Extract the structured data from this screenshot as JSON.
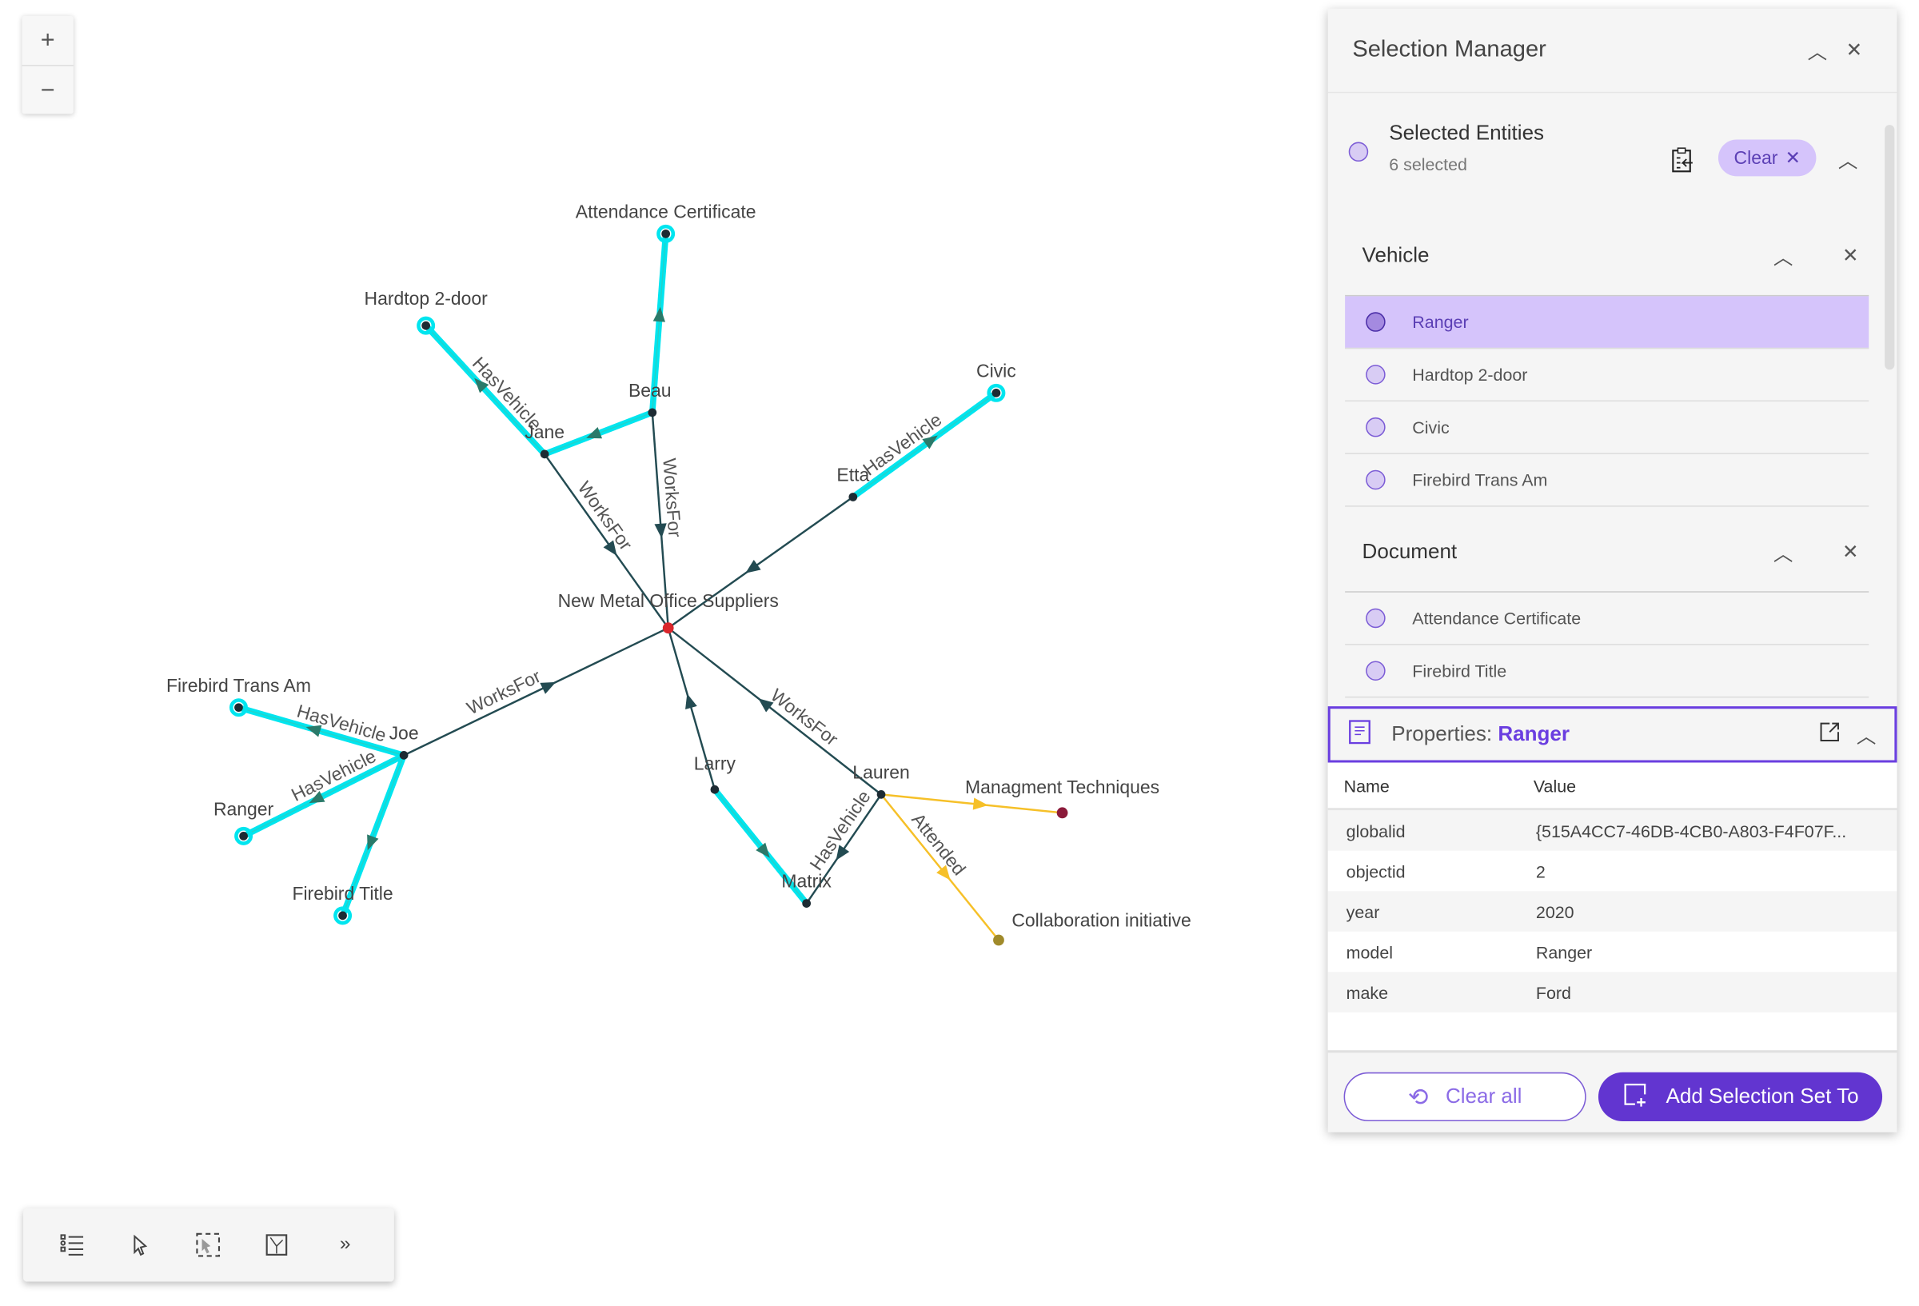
{
  "graph": {
    "nodes": [
      {
        "id": "nmos",
        "label": "New Metal Office Suppliers",
        "color": "#d9262b"
      },
      {
        "id": "cert",
        "label": "Attendance Certificate",
        "selected": true
      },
      {
        "id": "hardtop",
        "label": "Hardtop 2-door",
        "selected": true
      },
      {
        "id": "beau",
        "label": "Beau"
      },
      {
        "id": "jane",
        "label": "Jane"
      },
      {
        "id": "civic",
        "label": "Civic",
        "selected": true
      },
      {
        "id": "etta",
        "label": "Etta"
      },
      {
        "id": "fta",
        "label": "Firebird Trans Am",
        "selected": true
      },
      {
        "id": "joe",
        "label": "Joe"
      },
      {
        "id": "ranger",
        "label": "Ranger",
        "selected": true
      },
      {
        "id": "ftitle",
        "label": "Firebird Title",
        "selected": true
      },
      {
        "id": "larry",
        "label": "Larry"
      },
      {
        "id": "matrix",
        "label": "Matrix"
      },
      {
        "id": "lauren",
        "label": "Lauren"
      },
      {
        "id": "mgmt",
        "label": "Managment Techniques",
        "color": "#8b1a3a"
      },
      {
        "id": "collab",
        "label": "Collaboration initiative",
        "color": "#a08a2a"
      }
    ],
    "edges": [
      {
        "from": "jane",
        "to": "nmos",
        "label": "WorksFor",
        "kind": "normal"
      },
      {
        "from": "beau",
        "to": "nmos",
        "label": "WorksFor",
        "kind": "normal"
      },
      {
        "from": "etta",
        "to": "nmos",
        "label": "",
        "kind": "normal"
      },
      {
        "from": "joe",
        "to": "nmos",
        "label": "WorksFor",
        "kind": "normal"
      },
      {
        "from": "larry",
        "to": "nmos",
        "label": "",
        "kind": "normal"
      },
      {
        "from": "lauren",
        "to": "nmos",
        "label": "WorksFor",
        "kind": "normal"
      },
      {
        "from": "lauren",
        "to": "matrix",
        "label": "HasVehicle",
        "kind": "normal"
      },
      {
        "from": "jane",
        "to": "hardtop",
        "label": "HasVehicle",
        "kind": "selected"
      },
      {
        "from": "beau",
        "to": "jane",
        "label": "",
        "kind": "selected"
      },
      {
        "from": "beau",
        "to": "cert",
        "label": "",
        "kind": "selected"
      },
      {
        "from": "etta",
        "to": "civic",
        "label": "HasVehicle",
        "kind": "selected"
      },
      {
        "from": "joe",
        "to": "fta",
        "label": "HasVehicle",
        "kind": "selected"
      },
      {
        "from": "joe",
        "to": "ranger",
        "label": "HasVehicle",
        "kind": "selected"
      },
      {
        "from": "joe",
        "to": "ftitle",
        "label": "",
        "kind": "selected"
      },
      {
        "from": "larry",
        "to": "matrix",
        "label": "",
        "kind": "selected"
      },
      {
        "from": "lauren",
        "to": "mgmt",
        "label": "",
        "kind": "attended"
      },
      {
        "from": "lauren",
        "to": "collab",
        "label": "Attended",
        "kind": "attended"
      }
    ],
    "colors": {
      "normal": "#234b52",
      "selected": "#00e5ef",
      "attended": "#f6c028"
    }
  },
  "zoom": {
    "in": "+",
    "out": "−"
  },
  "toolbar": {
    "items": [
      "list-icon",
      "select-pointer-icon",
      "lasso-select-icon",
      "layout-icon",
      "more-icon"
    ],
    "more": "»"
  },
  "panel": {
    "title": "Selection Manager",
    "selected_entities": {
      "title": "Selected Entities",
      "count": "6 selected",
      "clear": "Clear"
    },
    "groups": [
      {
        "title": "Vehicle",
        "items": [
          "Ranger",
          "Hardtop 2-door",
          "Civic",
          "Firebird Trans Am"
        ],
        "selected_index": 0
      },
      {
        "title": "Document",
        "items": [
          "Attendance Certificate",
          "Firebird Title"
        ]
      }
    ],
    "properties": {
      "label": "Properties: ",
      "entity": "Ranger",
      "columns": [
        "Name",
        "Value"
      ],
      "rows": [
        [
          "globalid",
          "{515A4CC7-46DB-4CB0-A803-F4F07F..."
        ],
        [
          "objectid",
          "2"
        ],
        [
          "year",
          "2020"
        ],
        [
          "model",
          "Ranger"
        ],
        [
          "make",
          "Ford"
        ]
      ]
    },
    "clear_all": "Clear all",
    "add_set": "Add Selection Set To",
    "accent": "#6235d0"
  }
}
